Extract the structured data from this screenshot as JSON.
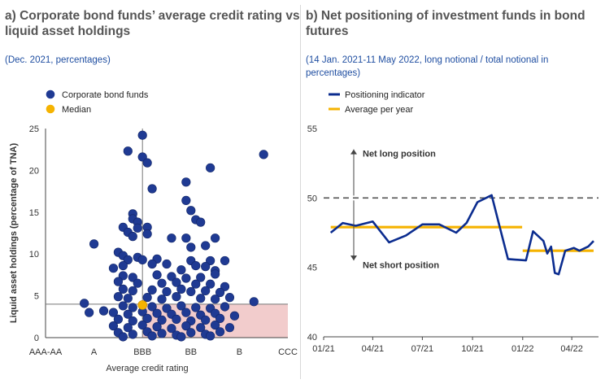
{
  "left": {
    "title": "a) Corporate bond funds’ average credit rating vs liquid asset holdings",
    "subtitle": "(Dec. 2021, percentages)"
  },
  "right": {
    "title": "b) Net positioning of investment funds in bond futures",
    "subtitle": "(14 Jan. 2021-11 May 2022, long notional / total notional in percentages)"
  },
  "colors": {
    "fund_dots": "#1f3a93",
    "median": "#f5b301",
    "positioning_line": "#0b2c8f",
    "average_line": "#f5b301",
    "shaded_region": "#f2cccc"
  },
  "chart_data": [
    {
      "type": "scatter",
      "xlabel": "Average credit rating",
      "ylabel": "Liquid asset holdings (percentage of TNA)",
      "x_categories": [
        "AAA-AA",
        "A",
        "BBB",
        "BB",
        "B",
        "CCC"
      ],
      "xlim": [
        0,
        5
      ],
      "ylim": [
        0,
        25
      ],
      "yticks": [
        0,
        5,
        10,
        15,
        20,
        25
      ],
      "legend": [
        "Corporate bond funds",
        "Median"
      ],
      "legend_position": "top-left",
      "median": {
        "x": 2.0,
        "y": 3.9
      },
      "reference_lines": {
        "x": 2.0,
        "y": 4.0
      },
      "shaded_region": {
        "x": [
          2.0,
          5.0
        ],
        "y": [
          0,
          4.0
        ]
      },
      "series": [
        {
          "name": "Corporate bond funds",
          "points": [
            [
              2.0,
              24.2
            ],
            [
              1.7,
              22.3
            ],
            [
              2.0,
              21.6
            ],
            [
              2.1,
              20.9
            ],
            [
              2.2,
              17.8
            ],
            [
              2.9,
              18.6
            ],
            [
              2.9,
              16.4
            ],
            [
              3.4,
              20.3
            ],
            [
              4.5,
              21.9
            ],
            [
              1.8,
              14.8
            ],
            [
              1.8,
              14.2
            ],
            [
              1.9,
              13.8
            ],
            [
              1.6,
              13.2
            ],
            [
              1.9,
              13.1
            ],
            [
              2.1,
              13.2
            ],
            [
              3.0,
              15.2
            ],
            [
              3.1,
              14.1
            ],
            [
              3.2,
              13.8
            ],
            [
              1.7,
              12.6
            ],
            [
              2.1,
              12.4
            ],
            [
              1.8,
              12.1
            ],
            [
              2.6,
              11.9
            ],
            [
              2.9,
              11.9
            ],
            [
              3.5,
              11.9
            ],
            [
              1.0,
              11.2
            ],
            [
              3.3,
              11.0
            ],
            [
              3.0,
              10.8
            ],
            [
              1.5,
              10.2
            ],
            [
              1.6,
              9.8
            ],
            [
              1.9,
              9.6
            ],
            [
              1.7,
              9.3
            ],
            [
              2.0,
              9.3
            ],
            [
              2.3,
              9.4
            ],
            [
              3.0,
              9.2
            ],
            [
              3.4,
              9.2
            ],
            [
              3.7,
              9.2
            ],
            [
              1.4,
              8.3
            ],
            [
              1.6,
              8.6
            ],
            [
              2.2,
              8.8
            ],
            [
              2.5,
              8.8
            ],
            [
              3.1,
              8.6
            ],
            [
              3.3,
              8.5
            ],
            [
              2.8,
              8.1
            ],
            [
              3.5,
              8.0
            ],
            [
              1.6,
              7.4
            ],
            [
              1.8,
              7.2
            ],
            [
              2.3,
              7.5
            ],
            [
              2.6,
              7.3
            ],
            [
              2.9,
              7.1
            ],
            [
              3.2,
              7.2
            ],
            [
              3.5,
              7.6
            ],
            [
              1.5,
              6.7
            ],
            [
              1.9,
              6.5
            ],
            [
              2.4,
              6.5
            ],
            [
              2.7,
              6.6
            ],
            [
              3.1,
              6.4
            ],
            [
              3.4,
              6.4
            ],
            [
              3.7,
              6.1
            ],
            [
              1.6,
              5.8
            ],
            [
              1.8,
              5.6
            ],
            [
              2.2,
              5.7
            ],
            [
              2.5,
              5.5
            ],
            [
              2.8,
              5.8
            ],
            [
              3.0,
              5.5
            ],
            [
              3.3,
              5.6
            ],
            [
              3.6,
              5.4
            ],
            [
              1.5,
              4.9
            ],
            [
              1.7,
              4.7
            ],
            [
              2.1,
              4.8
            ],
            [
              2.4,
              4.6
            ],
            [
              2.7,
              4.9
            ],
            [
              3.2,
              4.7
            ],
            [
              3.5,
              4.6
            ],
            [
              3.8,
              4.8
            ],
            [
              4.3,
              4.3
            ],
            [
              0.8,
              4.1
            ],
            [
              1.6,
              3.8
            ],
            [
              1.8,
              3.6
            ],
            [
              2.2,
              3.7
            ],
            [
              2.5,
              3.5
            ],
            [
              2.8,
              3.8
            ],
            [
              3.1,
              3.6
            ],
            [
              3.4,
              3.5
            ],
            [
              3.7,
              3.7
            ],
            [
              1.2,
              3.2
            ],
            [
              1.4,
              3.0
            ],
            [
              0.9,
              3.0
            ],
            [
              1.7,
              2.8
            ],
            [
              2.0,
              3.1
            ],
            [
              2.3,
              2.9
            ],
            [
              2.6,
              2.8
            ],
            [
              2.9,
              3.0
            ],
            [
              3.2,
              2.7
            ],
            [
              3.5,
              2.9
            ],
            [
              3.9,
              2.6
            ],
            [
              1.5,
              2.2
            ],
            [
              1.8,
              2.0
            ],
            [
              2.1,
              2.3
            ],
            [
              2.4,
              2.1
            ],
            [
              2.7,
              2.2
            ],
            [
              3.0,
              2.0
            ],
            [
              3.3,
              2.1
            ],
            [
              3.6,
              2.3
            ],
            [
              1.4,
              1.4
            ],
            [
              1.7,
              1.2
            ],
            [
              2.0,
              1.5
            ],
            [
              2.3,
              1.3
            ],
            [
              2.6,
              1.1
            ],
            [
              2.9,
              1.4
            ],
            [
              3.2,
              1.2
            ],
            [
              3.5,
              1.5
            ],
            [
              3.8,
              1.2
            ],
            [
              1.5,
              0.6
            ],
            [
              1.8,
              0.4
            ],
            [
              2.1,
              0.7
            ],
            [
              2.4,
              0.5
            ],
            [
              2.7,
              0.3
            ],
            [
              3.0,
              0.6
            ],
            [
              3.3,
              0.4
            ],
            [
              3.6,
              0.7
            ],
            [
              1.6,
              0.1
            ],
            [
              2.2,
              0.2
            ],
            [
              2.8,
              0.1
            ],
            [
              3.4,
              0.2
            ]
          ]
        }
      ]
    },
    {
      "type": "line",
      "ylim": [
        40,
        55
      ],
      "yticks": [
        40,
        45,
        50,
        55
      ],
      "x_tick_labels": [
        "01/21",
        "04/21",
        "07/21",
        "10/21",
        "01/22",
        "04/22"
      ],
      "x_range": [
        "2021-01-14",
        "2022-05-11"
      ],
      "legend": [
        "Positioning indicator",
        "Average per year"
      ],
      "legend_position": "top-left",
      "reference_line": 50,
      "annotations": [
        "Net long position",
        "Net short position"
      ],
      "series": [
        {
          "name": "Positioning indicator",
          "points": [
            [
              "2021-01-14",
              47.5
            ],
            [
              "2021-02-05",
              48.2
            ],
            [
              "2021-03-01",
              48.0
            ],
            [
              "2021-04-01",
              48.3
            ],
            [
              "2021-05-01",
              46.8
            ],
            [
              "2021-06-01",
              47.3
            ],
            [
              "2021-07-01",
              48.1
            ],
            [
              "2021-08-01",
              48.1
            ],
            [
              "2021-09-01",
              47.5
            ],
            [
              "2021-09-20",
              48.2
            ],
            [
              "2021-10-10",
              49.7
            ],
            [
              "2021-11-05",
              50.2
            ],
            [
              "2021-11-20",
              47.9
            ],
            [
              "2021-12-05",
              45.6
            ],
            [
              "2022-01-07",
              45.5
            ],
            [
              "2022-01-20",
              47.6
            ],
            [
              "2022-02-08",
              46.9
            ],
            [
              "2022-02-15",
              46.0
            ],
            [
              "2022-02-22",
              46.5
            ],
            [
              "2022-03-01",
              44.6
            ],
            [
              "2022-03-08",
              44.5
            ],
            [
              "2022-03-20",
              46.2
            ],
            [
              "2022-04-05",
              46.4
            ],
            [
              "2022-04-15",
              46.2
            ],
            [
              "2022-05-01",
              46.5
            ],
            [
              "2022-05-11",
              46.9
            ]
          ]
        },
        {
          "name": "Average per year",
          "segments": [
            {
              "from": "2021-01-14",
              "to": "2021-12-31",
              "value": 47.9
            },
            {
              "from": "2022-01-01",
              "to": "2022-05-11",
              "value": 46.2
            }
          ]
        }
      ]
    }
  ]
}
